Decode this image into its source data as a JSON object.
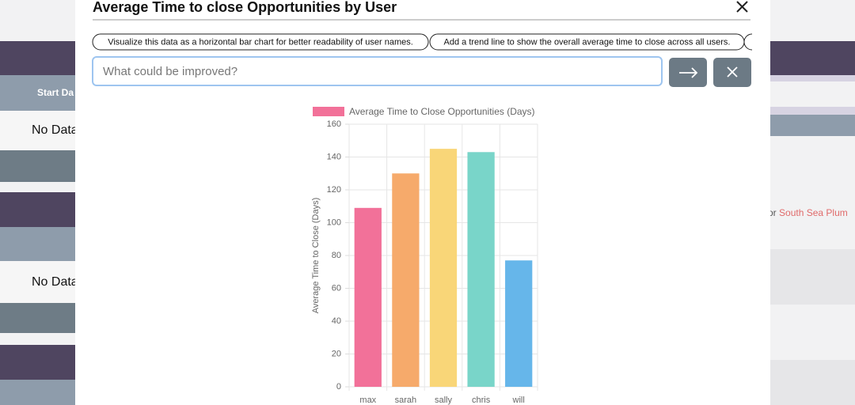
{
  "background": {
    "left_header": "Start Da",
    "left_rows": [
      "No Data",
      "No Data"
    ],
    "right_prefix": "or",
    "right_link": "South Sea Plum"
  },
  "modal": {
    "title": "Average Time to close Opportunities by User",
    "suggestions": [
      "Visualize this data as a horizontal bar chart for better readability of user names.",
      "Add a trend line to show the overall average time to close across all users."
    ],
    "input_placeholder": "What could be improved?"
  },
  "chart_data": {
    "type": "bar",
    "ylabel": "Average Time to Close (Days)",
    "categories": [
      "max",
      "sarah",
      "sally",
      "chris",
      "will"
    ],
    "series": [
      {
        "name": "Average Time to Close Opportunities (Days)",
        "color": "#f27199",
        "colors": [
          "#f27199",
          "#f6aa6b",
          "#f9d678",
          "#79d5c9",
          "#66b6ea"
        ],
        "values": [
          109,
          130,
          145,
          143,
          77
        ]
      }
    ],
    "ylim": [
      0,
      160
    ],
    "yticks": [
      0,
      20,
      40,
      60,
      80,
      100,
      120,
      140,
      160
    ],
    "grid": true
  }
}
